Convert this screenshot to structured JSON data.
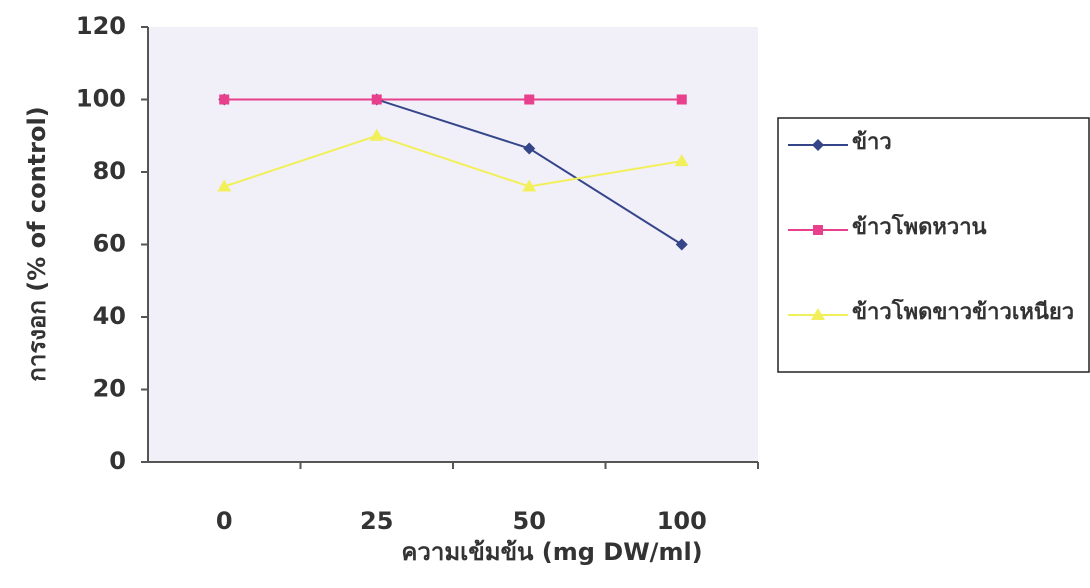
{
  "chart_data": {
    "type": "line",
    "x_label": "ความเข้มข้น (mg DW/ml)",
    "y_label": "การงอก (% of control)",
    "categories": [
      "0",
      "25",
      "50",
      "100"
    ],
    "series": [
      {
        "name": "ข้าว",
        "color": "#34458a",
        "values": [
          100,
          100,
          86.5,
          60
        ]
      },
      {
        "name": "ข้าวโพดหวาน",
        "color": "#e8408c",
        "values": [
          100,
          100,
          100,
          100
        ]
      },
      {
        "name": "ข้าวโพดขาวข้าวเหนียว",
        "color": "#f2f05a",
        "values": [
          76,
          90,
          76,
          83
        ]
      }
    ],
    "ylim": [
      0,
      120
    ],
    "yticks": [
      0,
      20,
      40,
      60,
      80,
      100,
      120
    ],
    "legend": "right"
  }
}
